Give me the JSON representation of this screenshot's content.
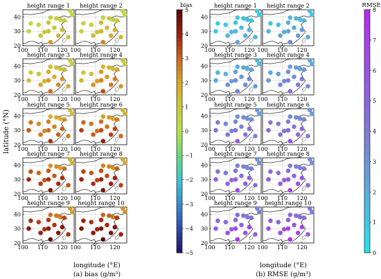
{
  "figure": {
    "panels": [
      {
        "key": "a",
        "caption": "(a) bias (g/m³)",
        "colorbar_title": "bias",
        "colorbar_ticks": [
          "5",
          "4",
          "3",
          "2",
          "1",
          "0",
          "−1",
          "−2",
          "−3",
          "−4",
          "−5"
        ],
        "colorbar_colors": [
          "#5a0a0a",
          "#a2200f",
          "#cf6a1d",
          "#d9a62a",
          "#c8c83a",
          "#b8e04a",
          "#6ad87a",
          "#3cc9d0",
          "#3a8fcf",
          "#2c4fb5",
          "#1d1a74"
        ],
        "xlabel": "longitude (°E)",
        "ylabel": "latitude (°N)"
      },
      {
        "key": "b",
        "caption": "(b) RMSE (g/m³)",
        "colorbar_title": "RMSE",
        "colorbar_ticks": [
          "8",
          "7",
          "6",
          "5",
          "4",
          "3",
          "2",
          "1",
          "0"
        ],
        "colorbar_colors": [
          "#b52cf0",
          "#a840ea",
          "#9a54e3",
          "#8c68dc",
          "#7e7cd5",
          "#6f93d7",
          "#5aaedb",
          "#40c8e3",
          "#25e0ee"
        ],
        "xlabel": "longitude (°E)",
        "ylabel": ""
      }
    ],
    "subplot_titles": [
      "height range 1",
      "height range 2",
      "height range 3",
      "height range 4",
      "height range 5",
      "height range 6",
      "height range 7",
      "height range 8",
      "height range 9",
      "height range 10"
    ],
    "x_ticks": [
      "100",
      "110",
      "120"
    ],
    "y_ticks": [
      "40",
      "30",
      "20"
    ]
  },
  "chart_data": [
    {
      "type": "scatter",
      "panel": "a",
      "variable": "bias",
      "unit": "g/m³",
      "xlim": [
        100,
        126
      ],
      "ylim": [
        20,
        45
      ],
      "colorbar_range": [
        -5,
        5
      ],
      "stations": [
        [
          103,
          30
        ],
        [
          104,
          35.5
        ],
        [
          108,
          34.5
        ],
        [
          113,
          36
        ],
        [
          114,
          39.5
        ],
        [
          117,
          39
        ],
        [
          119,
          38
        ],
        [
          121,
          37.5
        ],
        [
          125,
          41.5
        ],
        [
          124,
          44
        ],
        [
          113,
          30
        ],
        [
          116,
          32.5
        ],
        [
          120,
          31
        ],
        [
          114,
          22.5
        ],
        [
          118,
          27
        ],
        [
          123,
          26
        ],
        [
          111,
          29.5
        ],
        [
          109,
          27
        ]
      ],
      "values_by_height_range": [
        [
          0.4,
          0.2,
          0.3,
          1.0,
          0.6,
          0.7,
          0.5,
          0.8,
          0.3,
          0.4,
          1.2,
          1.0,
          1.4,
          2.2,
          1.5,
          1.0,
          0.9,
          1.1
        ],
        [
          0.6,
          0.4,
          0.6,
          1.3,
          0.8,
          0.9,
          0.7,
          1.1,
          0.5,
          0.6,
          1.6,
          1.3,
          1.7,
          2.6,
          1.9,
          1.4,
          1.2,
          1.4
        ],
        [
          1.2,
          0.8,
          1.0,
          1.8,
          1.2,
          1.3,
          1.0,
          1.6,
          0.8,
          0.9,
          2.2,
          1.8,
          2.3,
          3.0,
          2.4,
          1.9,
          1.7,
          1.9
        ],
        [
          1.5,
          1.0,
          1.3,
          2.2,
          1.5,
          1.6,
          1.3,
          2.0,
          1.0,
          1.1,
          2.6,
          2.2,
          2.7,
          3.4,
          2.8,
          2.3,
          2.1,
          2.3
        ],
        [
          3.2,
          2.8,
          2.4,
          2.6,
          1.8,
          1.9,
          1.6,
          2.4,
          1.3,
          1.4,
          3.0,
          2.6,
          3.1,
          3.8,
          3.2,
          2.7,
          2.5,
          2.8
        ],
        [
          3.6,
          3.0,
          2.7,
          2.9,
          2.1,
          2.2,
          1.9,
          2.7,
          1.5,
          1.6,
          3.4,
          2.9,
          3.5,
          4.1,
          3.6,
          3.0,
          2.9,
          3.2
        ],
        [
          3.9,
          3.3,
          3.1,
          3.2,
          2.4,
          2.4,
          2.1,
          3.0,
          1.7,
          1.8,
          3.8,
          3.2,
          3.8,
          4.4,
          3.9,
          3.3,
          3.3,
          3.6
        ],
        [
          4.0,
          3.5,
          3.3,
          3.4,
          2.6,
          2.6,
          2.3,
          3.2,
          1.9,
          2.0,
          4.0,
          3.4,
          4.0,
          4.6,
          4.1,
          3.5,
          3.5,
          3.8
        ],
        [
          4.3,
          3.8,
          3.6,
          3.7,
          2.9,
          2.9,
          2.6,
          3.5,
          2.1,
          2.2,
          4.3,
          3.7,
          4.3,
          4.8,
          4.4,
          3.8,
          3.8,
          4.1
        ],
        [
          4.5,
          4.0,
          3.8,
          3.9,
          3.1,
          3.1,
          2.8,
          3.7,
          2.3,
          2.4,
          4.5,
          3.9,
          4.5,
          5.0,
          4.6,
          4.0,
          4.0,
          4.3
        ]
      ]
    },
    {
      "type": "scatter",
      "panel": "b",
      "variable": "RMSE",
      "unit": "g/m³",
      "xlim": [
        100,
        126
      ],
      "ylim": [
        20,
        45
      ],
      "colorbar_range": [
        0,
        8
      ],
      "stations": [
        [
          103,
          30
        ],
        [
          104,
          35.5
        ],
        [
          108,
          34.5
        ],
        [
          113,
          36
        ],
        [
          114,
          39.5
        ],
        [
          117,
          39
        ],
        [
          119,
          38
        ],
        [
          121,
          37.5
        ],
        [
          125,
          41.5
        ],
        [
          124,
          44
        ],
        [
          113,
          30
        ],
        [
          116,
          32.5
        ],
        [
          120,
          31
        ],
        [
          114,
          22.5
        ],
        [
          118,
          27
        ],
        [
          123,
          26
        ],
        [
          111,
          29.5
        ],
        [
          109,
          27
        ]
      ],
      "values_by_height_range": [
        [
          1.0,
          0.8,
          1.0,
          1.4,
          1.1,
          1.2,
          1.0,
          1.3,
          0.8,
          0.9,
          1.8,
          1.5,
          1.9,
          2.6,
          2.0,
          1.6,
          1.5,
          1.6
        ],
        [
          1.6,
          1.3,
          1.5,
          2.0,
          1.6,
          1.7,
          1.5,
          1.9,
          1.2,
          1.3,
          2.5,
          2.1,
          2.6,
          3.4,
          2.7,
          2.2,
          2.1,
          2.3
        ],
        [
          2.2,
          1.8,
          2.0,
          2.6,
          2.1,
          2.2,
          2.0,
          2.5,
          1.6,
          1.7,
          3.2,
          2.7,
          3.3,
          4.2,
          3.4,
          2.8,
          2.7,
          2.9
        ],
        [
          2.7,
          2.2,
          2.5,
          3.1,
          2.6,
          2.7,
          2.4,
          3.0,
          2.0,
          2.1,
          3.8,
          3.2,
          3.9,
          4.9,
          4.0,
          3.3,
          3.3,
          3.5
        ],
        [
          4.4,
          3.9,
          3.4,
          3.6,
          3.0,
          3.1,
          2.8,
          3.4,
          2.4,
          2.5,
          4.4,
          3.8,
          4.5,
          5.5,
          4.6,
          3.8,
          3.8,
          4.1
        ],
        [
          4.8,
          4.2,
          3.8,
          4.0,
          3.4,
          3.5,
          3.2,
          3.8,
          2.7,
          2.8,
          4.9,
          4.2,
          5.0,
          6.0,
          5.1,
          4.2,
          4.3,
          4.6
        ],
        [
          5.2,
          4.6,
          4.2,
          4.4,
          3.7,
          3.8,
          3.5,
          4.1,
          3.0,
          3.1,
          5.4,
          4.6,
          5.5,
          6.5,
          5.6,
          4.6,
          4.8,
          5.1
        ],
        [
          5.6,
          4.9,
          4.5,
          4.7,
          4.0,
          4.1,
          3.8,
          4.4,
          3.3,
          3.4,
          5.8,
          5.0,
          5.9,
          6.9,
          6.0,
          5.0,
          5.2,
          5.5
        ],
        [
          6.0,
          5.3,
          4.9,
          5.1,
          4.3,
          4.4,
          4.1,
          4.7,
          3.6,
          3.7,
          6.3,
          5.4,
          6.4,
          7.4,
          6.5,
          5.4,
          5.7,
          6.0
        ],
        [
          6.3,
          5.6,
          5.2,
          5.4,
          4.6,
          4.7,
          4.4,
          5.0,
          3.9,
          4.0,
          6.7,
          5.8,
          6.8,
          7.8,
          6.9,
          5.8,
          6.1,
          6.4
        ]
      ]
    }
  ]
}
